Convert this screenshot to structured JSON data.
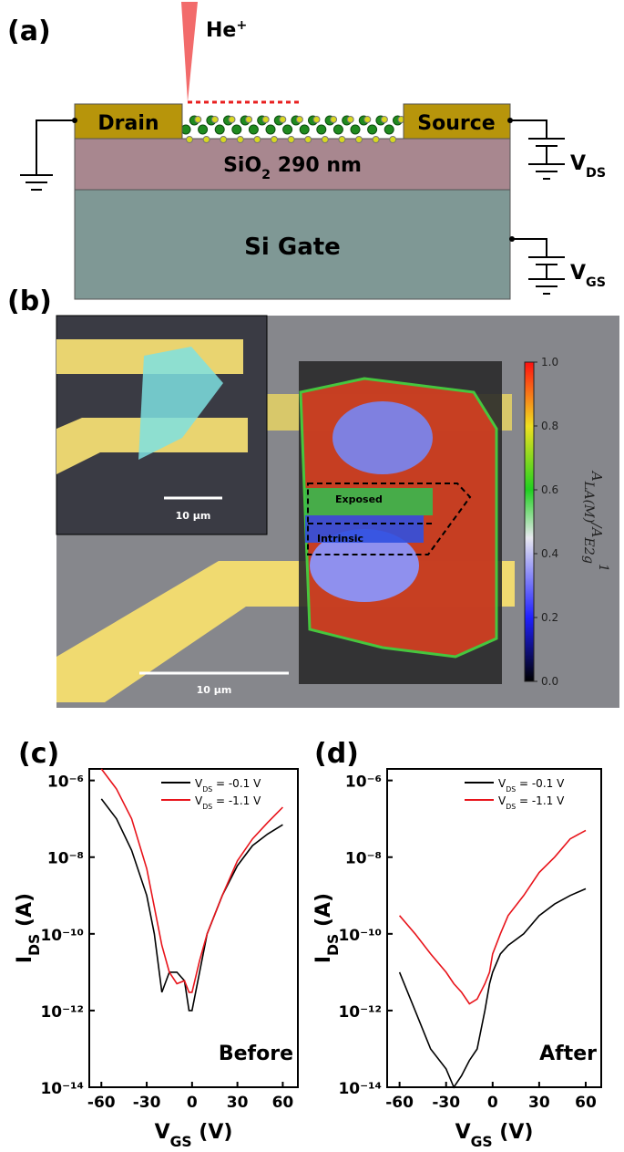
{
  "panel_a": {
    "label": "(a)",
    "beam": {
      "main": "He",
      "sup": "+"
    },
    "drain": "Drain",
    "source": "Source",
    "oxide": {
      "main": "SiO",
      "sub": "2",
      "tail": " 290 nm"
    },
    "gate": "Si Gate",
    "vds": {
      "main": "V",
      "sub": "DS"
    },
    "vgs": {
      "main": "V",
      "sub": "GS"
    }
  },
  "panel_b": {
    "label": "(b)",
    "inset_scale": "10 µm",
    "main_scale": "10 µm",
    "exposed": "Exposed",
    "intrinsic": "Intrinsic",
    "colorbar": {
      "label": {
        "main": "A",
        "sub": "LA(M)",
        "mid": "/A",
        "sub2": "E2g",
        "sup": "1"
      },
      "lim": [
        0,
        1
      ],
      "ticks": [
        {
          "value": 1,
          "label": "1.0"
        },
        {
          "value": 0.8,
          "label": "0.8"
        },
        {
          "value": 0.6,
          "label": "0.6"
        },
        {
          "value": 0.4,
          "label": "0.4"
        },
        {
          "value": 0.2,
          "label": "0.2"
        },
        {
          "value": 0,
          "label": "0.0"
        }
      ]
    }
  },
  "chart_data": [
    {
      "type": "line",
      "panel": "(c)",
      "annotation": "Before",
      "log_y": true,
      "x_label": {
        "main": "V",
        "sub": "GS",
        "tail": " (V)"
      },
      "y_label": {
        "main": "I",
        "sub": "DS",
        "tail": " (A)"
      },
      "xlim": [
        -68,
        70
      ],
      "ylim": [
        1e-14,
        2e-06
      ],
      "xticks": [
        -60,
        -30,
        0,
        30,
        60
      ],
      "yticks": [
        {
          "value": 1e-14,
          "label": "10⁻¹⁴"
        },
        {
          "value": 1e-12,
          "label": "10⁻¹²"
        },
        {
          "value": 1e-10,
          "label": "10⁻¹⁰"
        },
        {
          "value": 1e-08,
          "label": "10⁻⁸"
        },
        {
          "value": 1e-06,
          "label": "10⁻⁶"
        }
      ],
      "x": [
        -60,
        -50,
        -40,
        -30,
        -25,
        -20,
        -15,
        -10,
        -5,
        -2,
        0,
        5,
        10,
        20,
        30,
        40,
        50,
        60
      ],
      "series": [
        {
          "name": {
            "main": "V",
            "sub": "DS",
            "tail": " = -0.1 V"
          },
          "color": "#000000",
          "values": [
            3.3e-07,
            1e-07,
            1.5e-08,
            1e-09,
            1e-10,
            3e-12,
            1e-11,
            1e-11,
            6e-12,
            1e-12,
            1e-12,
            1e-11,
            1e-10,
            1e-09,
            6e-09,
            2e-08,
            4e-08,
            7e-08
          ]
        },
        {
          "name": {
            "main": "V",
            "sub": "DS",
            "tail": " = -1.1 V"
          },
          "color": "#e8141b",
          "values": [
            2e-06,
            6e-07,
            1e-07,
            5e-09,
            5e-10,
            5e-11,
            1e-11,
            5e-12,
            6e-12,
            3e-12,
            3e-12,
            2e-11,
            1e-10,
            1e-09,
            8e-09,
            3e-08,
            8e-08,
            2e-07
          ]
        }
      ]
    },
    {
      "type": "line",
      "panel": "(d)",
      "annotation": "After",
      "log_y": true,
      "x_label": {
        "main": "V",
        "sub": "GS",
        "tail": " (V)"
      },
      "y_label": {
        "main": "I",
        "sub": "DS",
        "tail": " (A)"
      },
      "xlim": [
        -68,
        70
      ],
      "ylim": [
        1e-14,
        2e-06
      ],
      "xticks": [
        -60,
        -30,
        0,
        30,
        60
      ],
      "yticks": [
        {
          "value": 1e-14,
          "label": "10⁻¹⁴"
        },
        {
          "value": 1e-12,
          "label": "10⁻¹²"
        },
        {
          "value": 1e-10,
          "label": "10⁻¹⁰"
        },
        {
          "value": 1e-08,
          "label": "10⁻⁸"
        },
        {
          "value": 1e-06,
          "label": "10⁻⁶"
        }
      ],
      "x": [
        -60,
        -50,
        -40,
        -30,
        -25,
        -20,
        -15,
        -10,
        -5,
        -2,
        0,
        5,
        10,
        20,
        30,
        40,
        50,
        60
      ],
      "series": [
        {
          "name": {
            "main": "V",
            "sub": "DS",
            "tail": " = -0.1 V"
          },
          "color": "#000000",
          "values": [
            1e-11,
            1e-12,
            1e-13,
            3e-14,
            1e-14,
            2e-14,
            5e-14,
            1e-13,
            1e-12,
            5e-12,
            1e-11,
            3e-11,
            5e-11,
            1e-10,
            3e-10,
            6e-10,
            1e-09,
            1.5e-09
          ]
        },
        {
          "name": {
            "main": "V",
            "sub": "DS",
            "tail": " = -1.1 V"
          },
          "color": "#e8141b",
          "values": [
            3e-10,
            1e-10,
            3e-11,
            1e-11,
            5e-12,
            3e-12,
            1.5e-12,
            2e-12,
            5e-12,
            1e-11,
            3e-11,
            1e-10,
            3e-10,
            1e-09,
            4e-09,
            1e-08,
            3e-08,
            5e-08
          ]
        }
      ]
    }
  ]
}
